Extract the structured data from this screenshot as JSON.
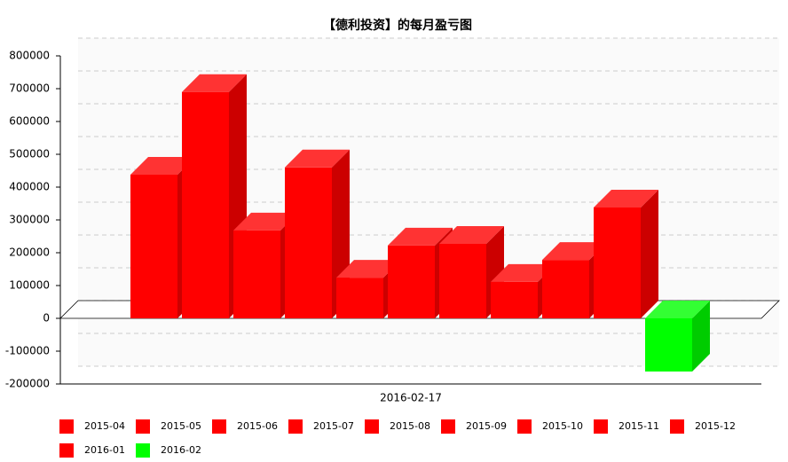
{
  "chart_data": {
    "type": "bar3d",
    "title": "【德利投资】的每月盈亏图",
    "categories": [
      "2016-02-17"
    ],
    "series": [
      {
        "name": "2015-04",
        "color": "#ff0000",
        "values": [
          438000
        ]
      },
      {
        "name": "2015-05",
        "color": "#ff0000",
        "values": [
          690000
        ]
      },
      {
        "name": "2015-06",
        "color": "#ff0000",
        "values": [
          268000
        ]
      },
      {
        "name": "2015-07",
        "color": "#ff0000",
        "values": [
          460000
        ]
      },
      {
        "name": "2015-08",
        "color": "#ff0000",
        "values": [
          124000
        ]
      },
      {
        "name": "2015-09",
        "color": "#ff0000",
        "values": [
          222000
        ]
      },
      {
        "name": "2015-10",
        "color": "#ff0000",
        "values": [
          227000
        ]
      },
      {
        "name": "2015-11",
        "color": "#ff0000",
        "values": [
          111000
        ]
      },
      {
        "name": "2015-12",
        "color": "#ff0000",
        "values": [
          178000
        ]
      },
      {
        "name": "2016-01",
        "color": "#ff0000",
        "values": [
          338000
        ]
      },
      {
        "name": "2016-02",
        "color": "#00ff00",
        "values": [
          -162000
        ]
      }
    ],
    "ylim": [
      -200000,
      800000
    ],
    "yticks": [
      -200000,
      -100000,
      0,
      100000,
      200000,
      300000,
      400000,
      500000,
      600000,
      700000,
      800000
    ],
    "grid": true
  }
}
